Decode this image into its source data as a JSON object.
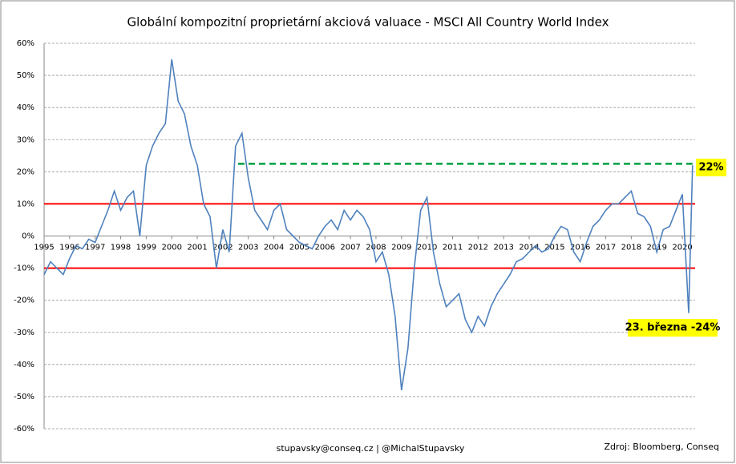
{
  "chart_data": {
    "type": "line",
    "title": "Globální kompozitní proprietární akciová valuace - MSCI All Country World Index",
    "x": [
      1995.0,
      1995.25,
      1995.5,
      1995.75,
      1996.0,
      1996.25,
      1996.5,
      1996.75,
      1997.0,
      1997.25,
      1997.5,
      1997.75,
      1998.0,
      1998.25,
      1998.5,
      1998.75,
      1999.0,
      1999.25,
      1999.5,
      1999.75,
      2000.0,
      2000.25,
      2000.5,
      2000.75,
      2001.0,
      2001.25,
      2001.5,
      2001.75,
      2002.0,
      2002.25,
      2002.5,
      2002.75,
      2003.0,
      2003.25,
      2003.5,
      2003.75,
      2004.0,
      2004.25,
      2004.5,
      2004.75,
      2005.0,
      2005.25,
      2005.5,
      2005.75,
      2006.0,
      2006.25,
      2006.5,
      2006.75,
      2007.0,
      2007.25,
      2007.5,
      2007.75,
      2008.0,
      2008.25,
      2008.5,
      2008.75,
      2009.0,
      2009.25,
      2009.5,
      2009.75,
      2010.0,
      2010.25,
      2010.5,
      2010.75,
      2011.0,
      2011.25,
      2011.5,
      2011.75,
      2012.0,
      2012.25,
      2012.5,
      2012.75,
      2013.0,
      2013.25,
      2013.5,
      2013.75,
      2014.0,
      2014.25,
      2014.5,
      2014.75,
      2015.0,
      2015.25,
      2015.5,
      2015.75,
      2016.0,
      2016.25,
      2016.5,
      2016.75,
      2017.0,
      2017.25,
      2017.5,
      2017.75,
      2018.0,
      2018.25,
      2018.5,
      2018.75,
      2019.0,
      2019.25,
      2019.5,
      2019.75,
      2020.0,
      2020.25,
      2020.4
    ],
    "series": [
      {
        "name": "MSCI ACWI",
        "color": "#4f81bd",
        "values": [
          -12,
          -8,
          -10,
          -12,
          -7,
          -3,
          -4,
          -1,
          -2,
          3,
          8,
          14,
          8,
          12,
          14,
          0,
          22,
          28,
          32,
          35,
          55,
          42,
          38,
          28,
          22,
          10,
          6,
          -10,
          2,
          -5,
          28,
          32,
          18,
          8,
          5,
          2,
          8,
          10,
          2,
          0,
          -2,
          -3,
          -4,
          0,
          3,
          5,
          2,
          8,
          5,
          8,
          6,
          2,
          -8,
          -5,
          -12,
          -25,
          -48,
          -35,
          -10,
          8,
          12,
          -5,
          -15,
          -22,
          -20,
          -18,
          -26,
          -30,
          -25,
          -28,
          -22,
          -18,
          -15,
          -12,
          -8,
          -7,
          -5,
          -3,
          -5,
          -4,
          0,
          3,
          2,
          -5,
          -8,
          -2,
          3,
          5,
          8,
          10,
          10,
          12,
          14,
          7,
          6,
          3,
          -5,
          2,
          3,
          8,
          13,
          -24,
          22
        ]
      }
    ],
    "xlim": [
      1995,
      2020.5
    ],
    "xticks": [
      1995,
      1996,
      1997,
      1998,
      1999,
      2000,
      2001,
      2002,
      2003,
      2004,
      2005,
      2006,
      2007,
      2008,
      2009,
      2010,
      2011,
      2012,
      2013,
      2014,
      2015,
      2016,
      2017,
      2018,
      2019,
      2020
    ],
    "ylim": [
      -60,
      60
    ],
    "yticks": [
      {
        "value": -60,
        "label": "-60%"
      },
      {
        "value": -50,
        "label": "-50%"
      },
      {
        "value": -40,
        "label": "-40%"
      },
      {
        "value": -30,
        "label": "-30%"
      },
      {
        "value": -20,
        "label": "-20%"
      },
      {
        "value": -10,
        "label": "-10%"
      },
      {
        "value": 0,
        "label": "0%"
      },
      {
        "value": 10,
        "label": "10%"
      },
      {
        "value": 20,
        "label": "20%"
      },
      {
        "value": 30,
        "label": "30%"
      },
      {
        "value": 40,
        "label": "40%"
      },
      {
        "value": 50,
        "label": "50%"
      },
      {
        "value": 60,
        "label": "60%"
      }
    ],
    "grid": true,
    "reference_lines": [
      {
        "value": 10,
        "color": "#ff0000"
      },
      {
        "value": -10,
        "color": "#ff0000"
      }
    ],
    "target_line": {
      "value": 22.5,
      "x": [
        2002.6,
        2020.4
      ],
      "color": "#00a040"
    },
    "annotations": [
      "22%",
      "23. března -24%"
    ],
    "footer_left": "stupavsky@conseq.cz  |  @MichalStupavsky",
    "footer_right": "Zdroj: Bloomberg, Conseq"
  }
}
